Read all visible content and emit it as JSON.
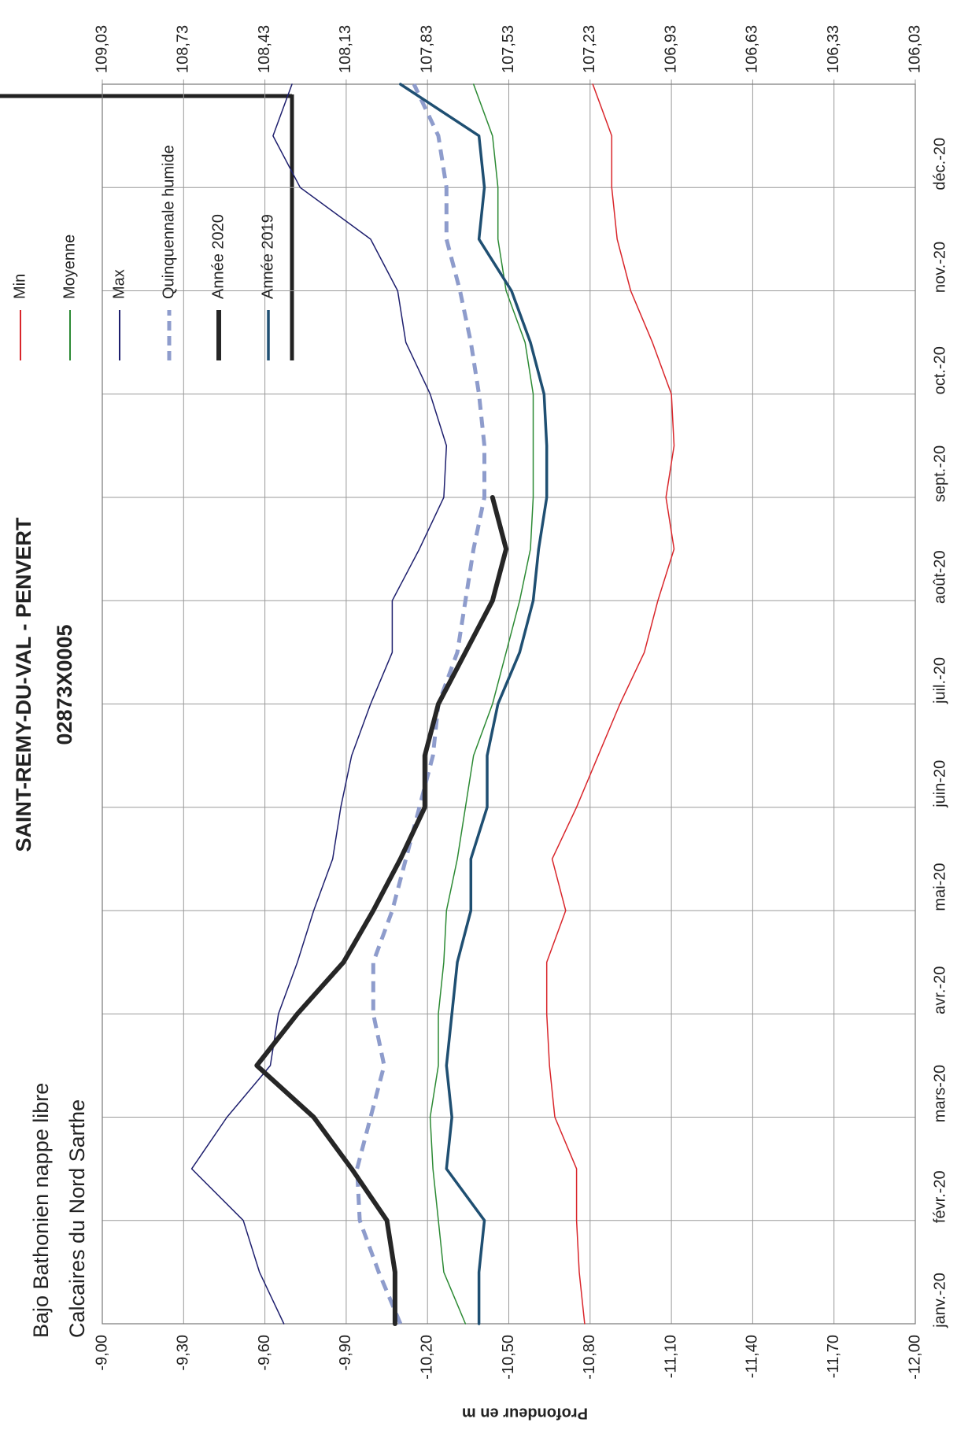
{
  "chart_data": {
    "type": "line",
    "title": "SAINT-REMY-DU-VAL - PENVERT",
    "subtitle": "02873X0005",
    "annotations": [
      "Bajo Bathonien nappe libre",
      "Calcaires du Nord Sarthe"
    ],
    "ylabel": "Profondeur en m",
    "x": [
      0,
      0.5,
      1,
      1.5,
      2,
      2.5,
      3,
      3.5,
      4,
      4.5,
      5,
      5.5,
      6,
      6.5,
      7,
      7.5,
      8,
      8.5,
      9,
      9.5,
      10,
      10.5,
      11,
      11.5,
      12
    ],
    "xlim": [
      0,
      12
    ],
    "xticks": [
      {
        "value": 0,
        "label": "janv.-20"
      },
      {
        "value": 1,
        "label": "févr.-20"
      },
      {
        "value": 2,
        "label": "mars-20"
      },
      {
        "value": 3,
        "label": "avr.-20"
      },
      {
        "value": 4,
        "label": "mai-20"
      },
      {
        "value": 5,
        "label": "juin-20"
      },
      {
        "value": 6,
        "label": "juil.-20"
      },
      {
        "value": 7,
        "label": "août-20"
      },
      {
        "value": 8,
        "label": "sept.-20"
      },
      {
        "value": 9,
        "label": "oct.-20"
      },
      {
        "value": 10,
        "label": "nov.-20"
      },
      {
        "value": 11,
        "label": "déc.-20"
      }
    ],
    "ylim": [
      -9,
      -12
    ],
    "yticks": [
      {
        "value": -9,
        "label": "-9,00"
      },
      {
        "value": -9.3,
        "label": "-9,30"
      },
      {
        "value": -9.6,
        "label": "-9,60"
      },
      {
        "value": -9.9,
        "label": "-9,90"
      },
      {
        "value": -10.2,
        "label": "-10,20"
      },
      {
        "value": -10.5,
        "label": "-10,50"
      },
      {
        "value": -10.8,
        "label": "-10,80"
      },
      {
        "value": -11.1,
        "label": "-11,10"
      },
      {
        "value": -11.4,
        "label": "-11,40"
      },
      {
        "value": -11.7,
        "label": "-11,70"
      },
      {
        "value": -12,
        "label": "-12,00"
      }
    ],
    "y2lim": [
      109.03,
      106.03
    ],
    "y2ticks": [
      {
        "value": 109.03,
        "label": "109,03"
      },
      {
        "value": 108.73,
        "label": "108,73"
      },
      {
        "value": 108.43,
        "label": "108,43"
      },
      {
        "value": 108.13,
        "label": "108,13"
      },
      {
        "value": 107.83,
        "label": "107,83"
      },
      {
        "value": 107.53,
        "label": "107,53"
      },
      {
        "value": 107.23,
        "label": "107,23"
      },
      {
        "value": 106.93,
        "label": "106,93"
      },
      {
        "value": 106.63,
        "label": "106,63"
      },
      {
        "value": 106.33,
        "label": "106,33"
      },
      {
        "value": 106.03,
        "label": "106,03"
      }
    ],
    "grid": true,
    "legend": "top-right",
    "series": [
      {
        "name": "Min",
        "color": "#d9262b",
        "linewidth": 1.5,
        "values": [
          -10.78,
          -10.76,
          -10.75,
          -10.75,
          -10.67,
          -10.65,
          -10.64,
          -10.64,
          -10.71,
          -10.66,
          -10.75,
          -10.83,
          -10.91,
          -11.0,
          -11.05,
          -11.11,
          -11.08,
          -11.11,
          -11.1,
          -11.03,
          -10.95,
          -10.9,
          -10.88,
          -10.88,
          -10.81
        ]
      },
      {
        "name": "Moyenne",
        "color": "#2c8a34",
        "linewidth": 1.5,
        "values": [
          -10.34,
          -10.26,
          -10.24,
          -10.22,
          -10.21,
          -10.24,
          -10.24,
          -10.26,
          -10.27,
          -10.31,
          -10.34,
          -10.37,
          -10.44,
          -10.49,
          -10.54,
          -10.58,
          -10.59,
          -10.59,
          -10.59,
          -10.56,
          -10.49,
          -10.46,
          -10.46,
          -10.44,
          -10.37
        ]
      },
      {
        "name": "Max",
        "color": "#1e1f6e",
        "linewidth": 1.5,
        "values": [
          -9.67,
          -9.58,
          -9.52,
          -9.33,
          -9.46,
          -9.62,
          -9.65,
          -9.72,
          -9.78,
          -9.85,
          -9.88,
          -9.92,
          -9.99,
          -10.07,
          -10.07,
          -10.17,
          -10.26,
          -10.27,
          -10.21,
          -10.12,
          -10.09,
          -9.99,
          -9.73,
          -9.63,
          -9.7
        ]
      },
      {
        "name": "Quinquennale humide",
        "color": "#8e9ccc",
        "linewidth": 5,
        "dashed": true,
        "values": [
          -10.1,
          -10.02,
          -9.95,
          -9.94,
          -9.99,
          -10.04,
          -10.0,
          -10.0,
          -10.07,
          -10.12,
          -10.17,
          -10.22,
          -10.24,
          -10.31,
          -10.34,
          -10.37,
          -10.41,
          -10.41,
          -10.39,
          -10.36,
          -10.32,
          -10.27,
          -10.27,
          -10.24,
          -10.15
        ]
      },
      {
        "name": "Année 2020",
        "color": "#262626",
        "linewidth": 6,
        "values": [
          -10.08,
          -10.08,
          -10.05,
          -9.92,
          -9.78,
          -9.57,
          -9.72,
          -9.89,
          -10.0,
          -10.1,
          -10.19,
          -10.19,
          -10.24,
          -10.34,
          -10.44,
          -10.49,
          -10.44,
          null,
          null,
          null,
          null,
          null,
          null,
          null,
          null
        ]
      },
      {
        "name": "Année 2019",
        "color": "#1f4f72",
        "linewidth": 3.5,
        "values": [
          -10.39,
          -10.39,
          -10.41,
          -10.27,
          -10.29,
          -10.27,
          -10.29,
          -10.31,
          -10.36,
          -10.36,
          -10.42,
          -10.42,
          -10.46,
          -10.54,
          -10.59,
          -10.61,
          -10.64,
          -10.64,
          -10.63,
          -10.58,
          -10.51,
          -10.39,
          -10.41,
          -10.39,
          -10.1
        ]
      }
    ]
  }
}
